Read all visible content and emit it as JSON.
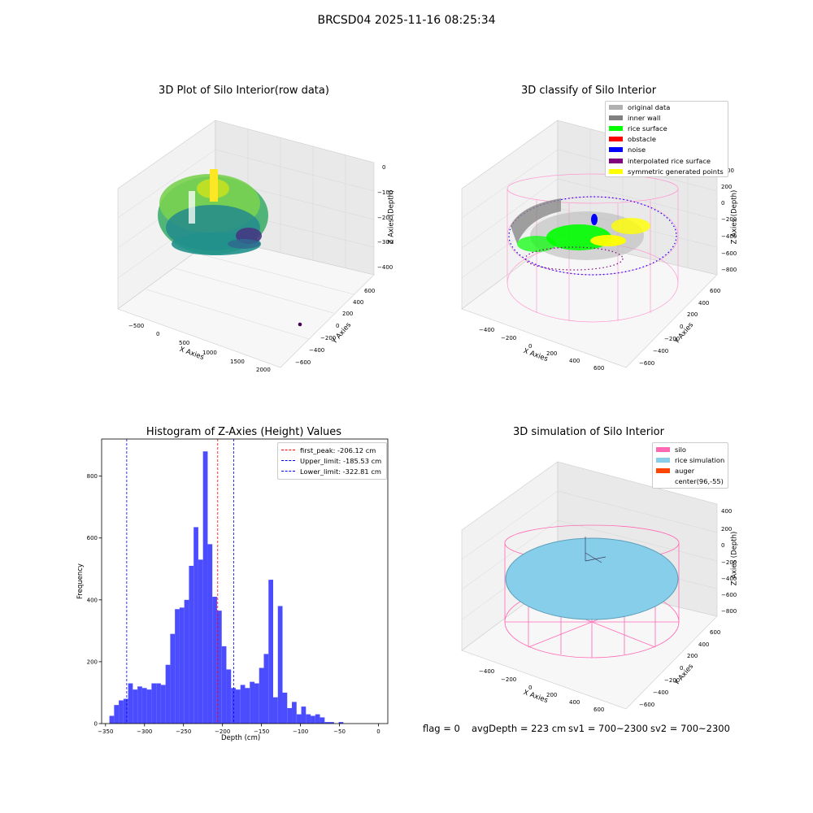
{
  "figure": {
    "suptitle": "BRCSD04 2025-11-16 08:25:34",
    "footer": {
      "flag": "flag = 0",
      "avg": "avgDepth = 223 cm",
      "sv1": "sv1 = 700~2300",
      "sv2": "sv2 = 700~2300"
    }
  },
  "chart_data": [
    {
      "type": "scatter",
      "title": "3D Plot of Silo Interior(row data)",
      "xlabel": "X Axies",
      "ylabel": "Y Axies",
      "zlabel": "Z Axies (Depth)",
      "x_ticks": [
        "−500",
        "0",
        "500",
        "1000",
        "1500",
        "2000"
      ],
      "y_ticks": [
        "−600",
        "−400",
        "−200",
        "0",
        "200",
        "400",
        "600"
      ],
      "z_ticks": [
        "0",
        "−100",
        "−200",
        "−300",
        "−400"
      ],
      "colormap": "viridis",
      "grid": true
    },
    {
      "type": "scatter",
      "title": "3D classify of Silo Interior",
      "xlabel": "X Axies",
      "ylabel": "Y Axies",
      "zlabel": "Z Axies (Depth)",
      "x_ticks": [
        "−400",
        "−200",
        "0",
        "200",
        "400",
        "600"
      ],
      "y_ticks": [
        "−600",
        "−400",
        "−200",
        "0",
        "200",
        "400",
        "600"
      ],
      "z_ticks": [
        "200",
        "0",
        "−200",
        "−400",
        "−600",
        "−800"
      ],
      "z_top_tick": "00",
      "legend": [
        {
          "label": "original data",
          "color": "#b0b0b0"
        },
        {
          "label": "inner wall",
          "color": "#808080"
        },
        {
          "label": "rice surface",
          "color": "#00ff00"
        },
        {
          "label": "obstacle",
          "color": "#ff0000"
        },
        {
          "label": "noise",
          "color": "#0000ff"
        },
        {
          "label": "interpolated rice surface",
          "color": "#800080"
        },
        {
          "label": "symmetric generated points",
          "color": "#ffff00"
        }
      ],
      "legend_loc": "upper right",
      "grid": true
    },
    {
      "type": "bar",
      "title": "Histogram of Z-Axies (Height) Values",
      "xlabel": "Depth (cm)",
      "ylabel": "Frequency",
      "xlim": [
        -355,
        12
      ],
      "ylim": [
        0,
        920
      ],
      "x_ticks": [
        -350,
        -300,
        -250,
        -200,
        -150,
        -100,
        -50,
        0
      ],
      "x_tick_labels": [
        "−350",
        "−300",
        "−250",
        "−200",
        "−150",
        "−100",
        "−50",
        "0"
      ],
      "y_ticks": [
        0,
        200,
        400,
        600,
        800
      ],
      "bin_width": 6,
      "bin_starts": [
        -345,
        -339,
        -333,
        -327,
        -321,
        -315,
        -309,
        -303,
        -297,
        -291,
        -285,
        -279,
        -273,
        -267,
        -261,
        -255,
        -249,
        -243,
        -237,
        -231,
        -225,
        -219,
        -213,
        -207,
        -201,
        -195,
        -189,
        -183,
        -177,
        -171,
        -165,
        -159,
        -153,
        -147,
        -141,
        -135,
        -129,
        -123,
        -117,
        -111,
        -105,
        -99,
        -93,
        -87,
        -81,
        -75,
        -69,
        -63,
        -57,
        -51,
        -45,
        -39,
        -33,
        -27,
        -21,
        -15,
        -9,
        -3
      ],
      "values": [
        25,
        60,
        75,
        80,
        130,
        110,
        120,
        115,
        110,
        130,
        130,
        125,
        190,
        290,
        370,
        375,
        400,
        510,
        635,
        530,
        880,
        580,
        410,
        365,
        250,
        175,
        115,
        110,
        125,
        115,
        135,
        130,
        180,
        225,
        465,
        85,
        380,
        100,
        50,
        70,
        30,
        55,
        30,
        25,
        30,
        20,
        5,
        5,
        0,
        5,
        0,
        0,
        0,
        0,
        0,
        0,
        0,
        0
      ],
      "bar_color": "#4c4cff",
      "legend": [
        {
          "label": "first_peak: -206.12 cm",
          "value": -206.12,
          "color": "#ff0000"
        },
        {
          "label": "Upper_limit: -185.53 cm",
          "value": -185.53,
          "color": "#0000ff"
        },
        {
          "label": "Lower_limit: -322.81 cm",
          "value": -322.81,
          "color": "#0000ff"
        }
      ],
      "legend_loc": "upper right",
      "grid": false
    },
    {
      "type": "scatter",
      "title": "3D simulation of Silo Interior",
      "xlabel": "X Axies",
      "ylabel": "Y Axies",
      "zlabel": "Z Axies (Depth)",
      "x_ticks": [
        "−400",
        "−200",
        "0",
        "200",
        "400",
        "600"
      ],
      "y_ticks": [
        "−600",
        "−400",
        "−200",
        "0",
        "200",
        "400",
        "600"
      ],
      "z_ticks": [
        "400",
        "200",
        "0",
        "−200",
        "−400",
        "−600",
        "−800"
      ],
      "legend": [
        {
          "label": "silo",
          "color": "#ff69b4"
        },
        {
          "label": "rice simulation",
          "color": "#87ceeb"
        },
        {
          "label": "auger",
          "color": "#ff4500"
        },
        {
          "label": "center(96,-55)",
          "color": "#ffffff"
        }
      ],
      "legend_loc": "upper right",
      "grid": true
    }
  ]
}
